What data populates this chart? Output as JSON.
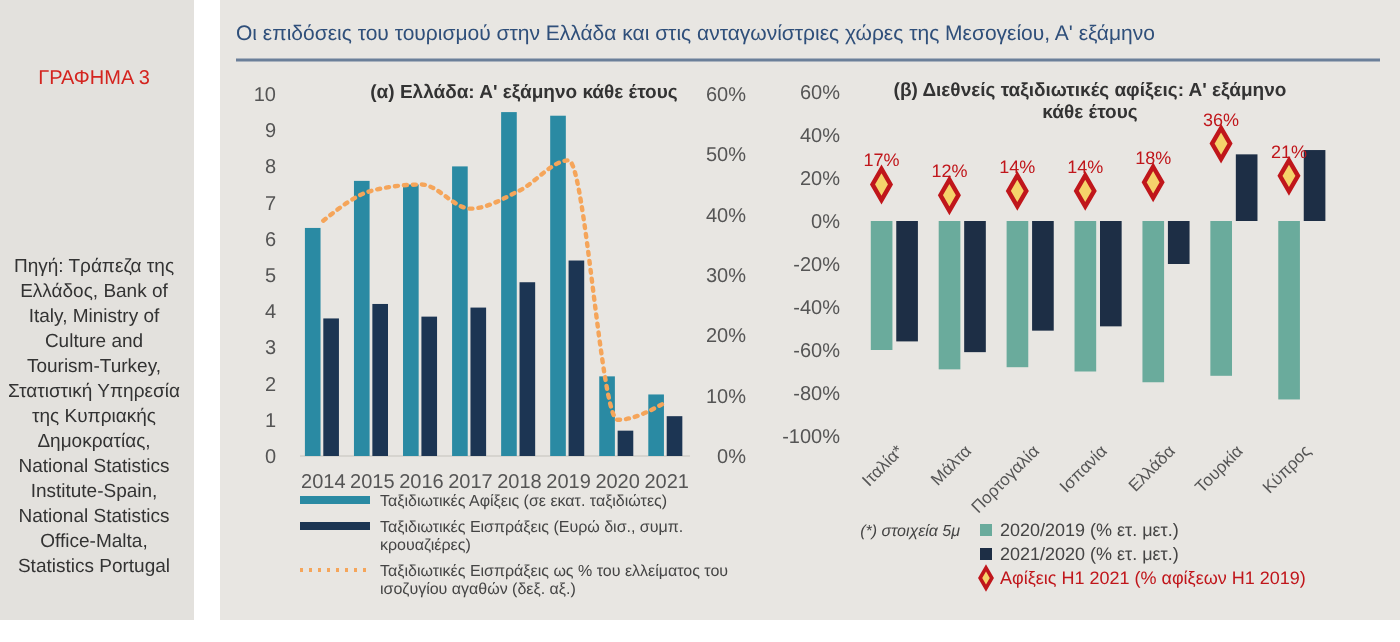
{
  "chart_data": [
    {
      "type": "bar",
      "title": "Οι επιδόσεις του τουρισμού στην Ελλάδα και στις ανταγωνίστριες χώρες της Μεσογείου, Α' εξάμηνο",
      "subtitle": "(α) Ελλάδα: Α' εξάμηνο κάθε έτους",
      "annotations": [
        "ΓΡΑΦΗΜΑ 3",
        "Πηγή: Τράπεζα της Ελλάδος, Bank of Italy, Ministry of Culture and Tourism-Turkey, Στατιστική Υπηρεσία της Κυπριακής Δημοκρατίας, National Statistics Institute-Spain, National Statistics Office-Malta, Statistics Portugal"
      ],
      "categories": [
        "2014",
        "2015",
        "2016",
        "2017",
        "2018",
        "2019",
        "2020",
        "2021"
      ],
      "series": [
        {
          "name": "Ταξιδιωτικές  Αφίξεις (σε εκατ. ταξιδιώτες)",
          "color": "#2a8aa3",
          "values": [
            6.3,
            7.6,
            7.5,
            8.0,
            9.5,
            9.4,
            2.2,
            1.7
          ]
        },
        {
          "name": "Ταξιδιωτικές  Εισπράξεις (Ευρώ δισ., συμπ. κρουαζιέρες)",
          "color": "#1c3553",
          "values": [
            3.8,
            4.2,
            3.85,
            4.1,
            4.8,
            5.4,
            0.7,
            1.1
          ]
        },
        {
          "name": "Ταξιδιωτικές Εισπράξεις ως % του ελλείματος του ισοζυγίου αγαθών  (δεξ. αξ.)",
          "type": "line",
          "axis": "y2",
          "color": "#f5a55a",
          "values": [
            39,
            44,
            45,
            41,
            44,
            49,
            6,
            9
          ]
        }
      ],
      "ylim": [
        0,
        10
      ],
      "yticks": [
        0,
        1,
        2,
        3,
        4,
        5,
        6,
        7,
        8,
        9,
        10
      ],
      "y2lim": [
        0,
        60
      ],
      "y2ticks": [
        {
          "value": 0,
          "label": "0%"
        },
        {
          "value": 10,
          "label": "10%"
        },
        {
          "value": 20,
          "label": "20%"
        },
        {
          "value": 30,
          "label": "30%"
        },
        {
          "value": 40,
          "label": "40%"
        },
        {
          "value": 50,
          "label": "50%"
        },
        {
          "value": 60,
          "label": "60%"
        }
      ],
      "line_style": "dotted",
      "marker": "none",
      "legend": "bottom",
      "grid": false
    },
    {
      "type": "bar",
      "title": "(β) Διεθνείς ταξιδιωτικές αφίξεις: Α' εξάμηνο κάθε έτους",
      "annotations": [
        "(*) στοιχεία  5μ"
      ],
      "categories": [
        "Ιταλία*",
        "Μάλτα",
        "Πορτογαλία",
        "Ισπανία",
        "Ελλάδα",
        "Τουρκία",
        "Κύπρος"
      ],
      "series": [
        {
          "name": "2020/2019 (% ετ. μετ.)",
          "color": "#6aab9c",
          "values": [
            -60,
            -69,
            -68,
            -70,
            -75,
            -72,
            -83
          ]
        },
        {
          "name": "2021/2020 (% ετ. μετ.)",
          "color": "#1d2e45",
          "values": [
            -56,
            -61,
            -51,
            -49,
            -20,
            31,
            33
          ]
        },
        {
          "name": "Αφίξεις H1 2021 (% αφίξεων H1 2019)",
          "type": "scatter",
          "marker": "diamond",
          "color": "#c0161b",
          "values": [
            17,
            12,
            14,
            14,
            18,
            36,
            21
          ],
          "value_labels": [
            "17%",
            "12%",
            "14%",
            "14%",
            "18%",
            "36%",
            "21%"
          ]
        }
      ],
      "ylim": [
        -100,
        60
      ],
      "yticks": [
        {
          "value": -100,
          "label": "-100%"
        },
        {
          "value": -80,
          "label": "-80%"
        },
        {
          "value": -60,
          "label": "-60%"
        },
        {
          "value": -40,
          "label": "-40%"
        },
        {
          "value": -20,
          "label": "-20%"
        },
        {
          "value": 0,
          "label": "0%"
        },
        {
          "value": 20,
          "label": "20%"
        },
        {
          "value": 40,
          "label": "40%"
        },
        {
          "value": 60,
          "label": "60%"
        }
      ],
      "legend": "bottom",
      "grid": false
    }
  ]
}
